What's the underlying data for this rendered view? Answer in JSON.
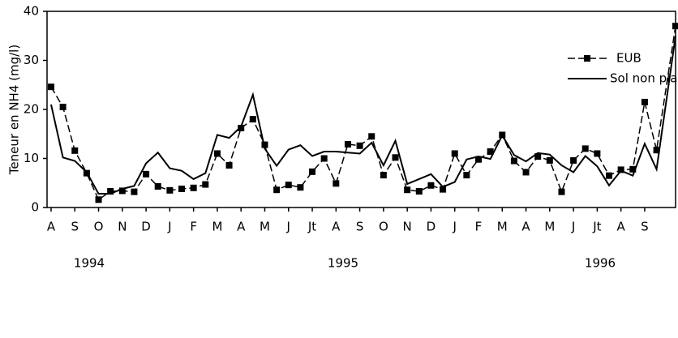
{
  "chart_data": {
    "type": "line",
    "y_label": "Teneur en NH4 (mg/l)",
    "x": [
      0,
      0.5,
      1,
      1.5,
      2,
      2.5,
      3,
      3.5,
      4,
      4.5,
      5,
      5.5,
      6,
      6.5,
      7,
      7.5,
      8,
      8.5,
      9,
      9.5,
      10,
      10.5,
      11,
      11.5,
      12,
      12.5,
      13,
      13.5,
      14,
      14.5,
      15,
      15.5,
      16,
      16.5,
      17,
      17.5,
      18,
      18.5,
      19,
      19.5,
      20,
      20.5,
      21,
      21.5,
      22,
      22.5,
      23,
      23.5,
      24,
      24.5,
      25,
      25.5,
      26.3
    ],
    "series": [
      {
        "name": "EUB",
        "color": "#000000",
        "style": "dashed-square",
        "values": [
          24.6,
          20.5,
          11.6,
          7,
          1.6,
          3.3,
          3.4,
          3.2,
          6.8,
          4.3,
          3.5,
          3.8,
          4.0,
          4.7,
          11,
          8.6,
          16.2,
          18,
          12.8,
          3.6,
          4.6,
          4.1,
          7.3,
          10,
          4.9,
          12.9,
          12.6,
          14.5,
          6.6,
          10.2,
          3.6,
          3.3,
          4.5,
          3.7,
          11,
          6.6,
          9.8,
          11.4,
          14.8,
          9.5,
          7.2,
          10.4,
          9.6,
          3.2,
          9.6,
          12,
          11,
          6.5,
          7.7,
          7.8,
          21.5,
          11.7,
          37
        ]
      },
      {
        "name": "Sol non planté",
        "color": "#000000",
        "style": "solid",
        "values": [
          21,
          10.2,
          9.5,
          7.2,
          2.8,
          2.8,
          3.8,
          4.4,
          9,
          11.2,
          8,
          7.5,
          5.8,
          7,
          14.8,
          14.2,
          16.5,
          23,
          12,
          8.5,
          11.8,
          12.7,
          10.5,
          11.4,
          11.4,
          11.2,
          11,
          13.2,
          8.6,
          13.6,
          4.8,
          5.8,
          6.8,
          4.2,
          5.2,
          9.8,
          10.4,
          9.9,
          14.7,
          10.7,
          9.4,
          11.1,
          10.8,
          8.6,
          7.2,
          10.5,
          8.4,
          4.5,
          7.5,
          6.5,
          13,
          7.8,
          35
        ]
      }
    ],
    "xlim": [
      -0.17,
      26.3
    ],
    "xticks": [
      {
        "value": 0,
        "label": "A"
      },
      {
        "value": 1,
        "label": "S"
      },
      {
        "value": 2,
        "label": "O"
      },
      {
        "value": 3,
        "label": "N"
      },
      {
        "value": 4,
        "label": "D"
      },
      {
        "value": 5,
        "label": "J"
      },
      {
        "value": 6,
        "label": "F"
      },
      {
        "value": 7,
        "label": "M"
      },
      {
        "value": 8,
        "label": "A"
      },
      {
        "value": 9,
        "label": "M"
      },
      {
        "value": 10,
        "label": "J"
      },
      {
        "value": 11,
        "label": "Jt"
      },
      {
        "value": 12,
        "label": "A"
      },
      {
        "value": 13,
        "label": "S"
      },
      {
        "value": 14,
        "label": "O"
      },
      {
        "value": 15,
        "label": "N"
      },
      {
        "value": 16,
        "label": "D"
      },
      {
        "value": 17,
        "label": "J"
      },
      {
        "value": 18,
        "label": "F"
      },
      {
        "value": 19,
        "label": "M"
      },
      {
        "value": 20,
        "label": "A"
      },
      {
        "value": 21,
        "label": "M"
      },
      {
        "value": 22,
        "label": "J"
      },
      {
        "value": 23,
        "label": "Jt"
      },
      {
        "value": 24,
        "label": "A"
      },
      {
        "value": 25,
        "label": "S"
      }
    ],
    "year_labels": [
      "1994",
      "1995",
      "1996"
    ],
    "ylim": [
      0,
      40
    ],
    "yticks": [
      0,
      10,
      20,
      30,
      40
    ],
    "grid": false,
    "legend": "upper right"
  }
}
